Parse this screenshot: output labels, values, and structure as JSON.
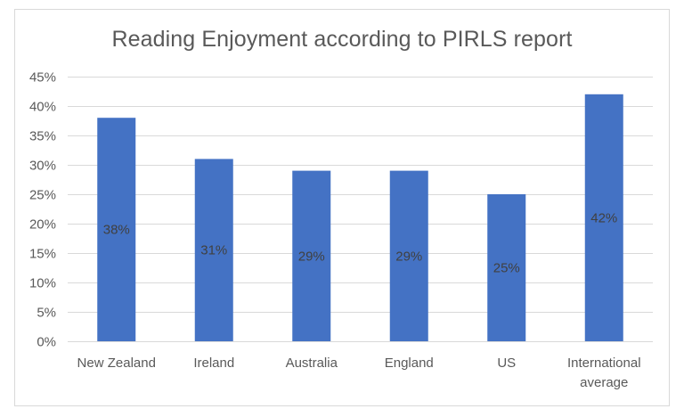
{
  "chart_data": {
    "type": "bar",
    "title": "Reading Enjoyment according to PIRLS report",
    "categories": [
      [
        "New Zealand"
      ],
      [
        "Ireland"
      ],
      [
        "Australia"
      ],
      [
        "England"
      ],
      [
        "US"
      ],
      [
        "International",
        "average"
      ]
    ],
    "series": [
      {
        "values": [
          38,
          31,
          29,
          29,
          25,
          42
        ],
        "color": "#4472c4"
      }
    ],
    "data_labels": [
      "38%",
      "31%",
      "29%",
      "29%",
      "25%",
      "42%"
    ],
    "ylim": [
      0,
      45
    ],
    "y_ticks": [
      0,
      5,
      10,
      15,
      20,
      25,
      30,
      35,
      40,
      45
    ],
    "y_tick_format": "percent",
    "xlabel": "",
    "ylabel": "",
    "grid": true,
    "legend": "none",
    "colors": {
      "gridline": "#d9d9d9",
      "text": "#595959",
      "bar": "#4472c4"
    }
  }
}
